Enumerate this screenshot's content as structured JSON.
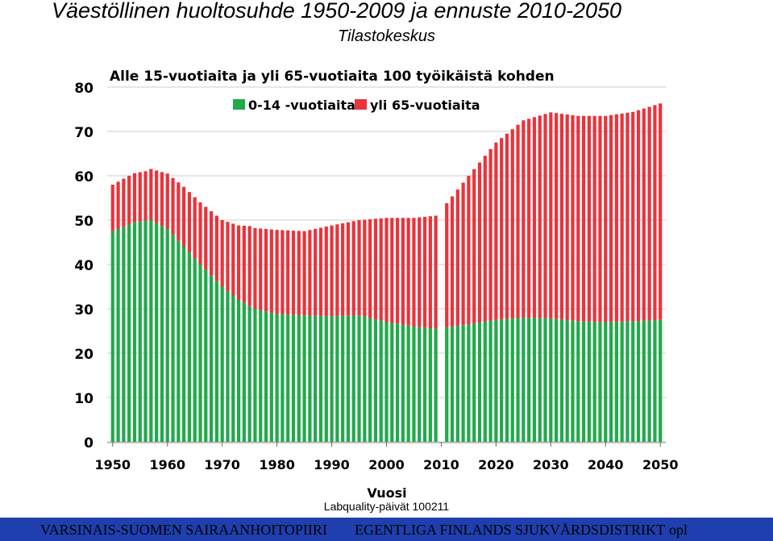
{
  "slide": {
    "title": "Väestöllinen huoltosuhde 1950-2009 ja ennuste 2010-2050",
    "subtitle": "Tilastokeskus",
    "footnote": "Labquality-päivät 100211",
    "footer_left": "VARSINAIS-SUOMEN SAIRAANHOITOPIIRI",
    "footer_right": "EGENTLIGA FINLANDS SJUKVÅRDSDISTRIKT",
    "footer_code": "opl"
  },
  "colors": {
    "young": "#22a94a",
    "old": "#e8343c",
    "grid": "#cccccc",
    "footer_bg": "#1f3fae"
  },
  "chart_data": {
    "type": "bar",
    "stacked": true,
    "title": "Alle 15-vuotiaita ja yli 65-vuotiaita 100 työikäistä kohden",
    "xlabel": "Vuosi",
    "ylabel": "",
    "ylim": [
      0,
      80
    ],
    "yticks": [
      0,
      10,
      20,
      30,
      40,
      50,
      60,
      70,
      80
    ],
    "xticks": [
      1950,
      1960,
      1970,
      1980,
      1990,
      2000,
      2010,
      2020,
      2030,
      2040,
      2050
    ],
    "grid": true,
    "legend_position": "top",
    "x_note": "annual bars 1950–2009 and 2011–2050; no bar for 2010",
    "series": [
      {
        "name": "0-14 -vuotiaita",
        "color": "#22a94a",
        "keyframes": [
          [
            1950,
            47.5
          ],
          [
            1954,
            49.5
          ],
          [
            1957,
            50
          ],
          [
            1960,
            48
          ],
          [
            1963,
            44
          ],
          [
            1966,
            40
          ],
          [
            1970,
            35
          ],
          [
            1973,
            32
          ],
          [
            1976,
            30
          ],
          [
            1980,
            28.8
          ],
          [
            1985,
            28.5
          ],
          [
            1990,
            28.3
          ],
          [
            1995,
            28.5
          ],
          [
            2000,
            27
          ],
          [
            2005,
            26
          ],
          [
            2009,
            25.5
          ],
          [
            2011,
            25.8
          ],
          [
            2015,
            26.5
          ],
          [
            2020,
            27.5
          ],
          [
            2025,
            28
          ],
          [
            2030,
            27.8
          ],
          [
            2035,
            27.2
          ],
          [
            2040,
            27
          ],
          [
            2045,
            27.2
          ],
          [
            2050,
            27.5
          ]
        ]
      },
      {
        "name": "yli 65-vuotiaita",
        "color": "#e8343c",
        "keyframes": [
          [
            1950,
            10.5
          ],
          [
            1953,
            11
          ],
          [
            1956,
            11.2
          ],
          [
            1960,
            12.5
          ],
          [
            1963,
            13.5
          ],
          [
            1966,
            14
          ],
          [
            1970,
            15
          ],
          [
            1975,
            18
          ],
          [
            1980,
            19
          ],
          [
            1985,
            19
          ],
          [
            1990,
            20.5
          ],
          [
            1995,
            21.5
          ],
          [
            2000,
            23.5
          ],
          [
            2005,
            24.5
          ],
          [
            2009,
            25.5
          ],
          [
            2011,
            28
          ],
          [
            2015,
            33.5
          ],
          [
            2020,
            40
          ],
          [
            2025,
            44.5
          ],
          [
            2030,
            46.5
          ],
          [
            2035,
            46.3
          ],
          [
            2040,
            46.5
          ],
          [
            2045,
            47.2
          ],
          [
            2050,
            48.8
          ]
        ]
      }
    ]
  }
}
